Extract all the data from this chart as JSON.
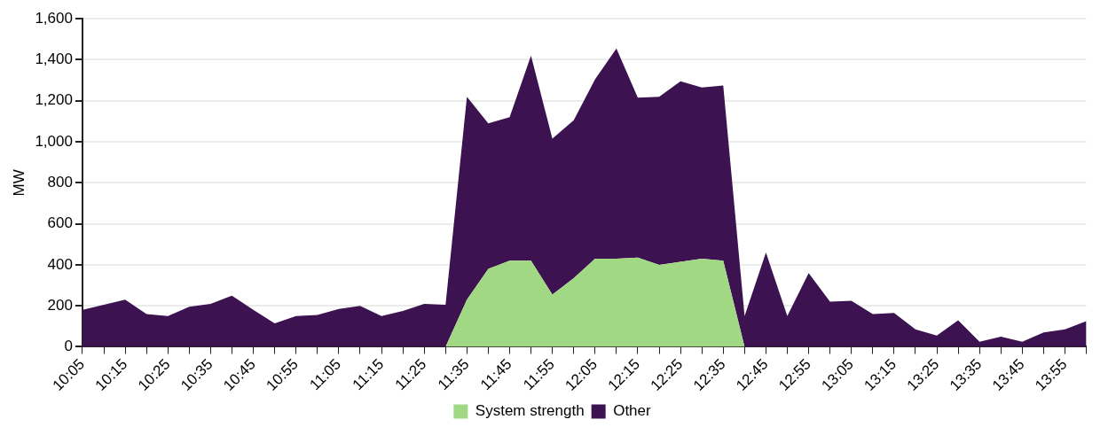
{
  "chart_data": {
    "type": "area",
    "stacked": true,
    "ylabel": "MW",
    "categories": [
      "10:05",
      null,
      "10:15",
      null,
      "10:25",
      null,
      "10:35",
      null,
      "10:45",
      null,
      "10:55",
      null,
      "11:05",
      null,
      "11:15",
      null,
      "11:25",
      null,
      "11:35",
      null,
      "11:45",
      null,
      "11:55",
      null,
      "12:05",
      null,
      "12:15",
      null,
      "12:25",
      null,
      "12:35",
      null,
      "12:45",
      null,
      "12:55",
      null,
      "13:05",
      null,
      "13:15",
      null,
      "13:25",
      null,
      "13:35",
      null,
      "13:45",
      null,
      "13:55",
      null
    ],
    "series": [
      {
        "name": "System strength",
        "color": "#a1d884",
        "values": [
          0,
          0,
          0,
          0,
          0,
          0,
          0,
          0,
          0,
          0,
          0,
          0,
          0,
          0,
          0,
          0,
          0,
          0,
          230,
          380,
          420,
          420,
          255,
          335,
          430,
          430,
          435,
          400,
          415,
          430,
          420,
          0,
          0,
          0,
          0,
          0,
          0,
          0,
          0,
          0,
          0,
          0,
          0,
          0,
          0,
          0,
          0,
          0
        ]
      },
      {
        "name": "Other",
        "color": "#3c1250",
        "values": [
          180,
          205,
          230,
          160,
          150,
          195,
          210,
          250,
          180,
          115,
          150,
          155,
          185,
          200,
          150,
          175,
          210,
          205,
          990,
          710,
          700,
          1000,
          760,
          770,
          875,
          1025,
          780,
          820,
          880,
          835,
          855,
          150,
          460,
          150,
          360,
          220,
          225,
          160,
          165,
          85,
          55,
          130,
          25,
          50,
          25,
          70,
          85,
          125
        ]
      }
    ],
    "ylim": [
      0,
      1600
    ],
    "yticks": [
      0,
      200,
      400,
      600,
      800,
      {
        "value": 1000,
        "label": "1,000"
      },
      {
        "value": 1200,
        "label": "1,200"
      },
      {
        "value": 1400,
        "label": "1,400"
      },
      {
        "value": 1600,
        "label": "1,600"
      }
    ],
    "grid": "y",
    "legend": "bottom"
  }
}
